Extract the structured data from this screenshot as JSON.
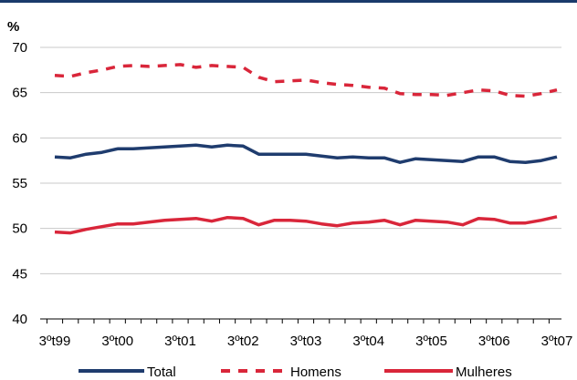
{
  "chart_data": {
    "type": "line",
    "unit_label": "%",
    "ylim": [
      40,
      70
    ],
    "yticks": [
      40,
      45,
      50,
      55,
      60,
      65,
      70
    ],
    "grid": true,
    "legend_position": "bottom",
    "x_tick_labels": [
      "3ºt99",
      "3ºt00",
      "3ºt01",
      "3ºt02",
      "3ºt03",
      "3ºt04",
      "3ºt05",
      "3ºt06",
      "3ºt07"
    ],
    "x_tick_indices": [
      0,
      4,
      8,
      12,
      16,
      20,
      24,
      28,
      32
    ],
    "n_points": 33,
    "series": [
      {
        "name": "Total",
        "color": "#1f3c6e",
        "dash": false,
        "values": [
          57.9,
          57.8,
          58.2,
          58.4,
          58.8,
          58.8,
          58.9,
          59.0,
          59.1,
          59.2,
          59.0,
          59.2,
          59.1,
          58.2,
          58.2,
          58.2,
          58.2,
          58.0,
          57.8,
          57.9,
          57.8,
          57.8,
          57.3,
          57.7,
          57.6,
          57.5,
          57.4,
          57.9,
          57.9,
          57.4,
          57.3,
          57.5,
          57.9
        ]
      },
      {
        "name": "Homens",
        "color": "#d9263a",
        "dash": true,
        "values": [
          66.9,
          66.8,
          67.2,
          67.5,
          67.9,
          68.0,
          67.9,
          68.0,
          68.1,
          67.8,
          68.0,
          67.9,
          67.8,
          66.7,
          66.2,
          66.3,
          66.4,
          66.1,
          65.9,
          65.8,
          65.6,
          65.5,
          64.9,
          64.8,
          64.8,
          64.7,
          65.0,
          65.3,
          65.2,
          64.7,
          64.6,
          64.9,
          65.3
        ]
      },
      {
        "name": "Mulheres",
        "color": "#d9263a",
        "dash": false,
        "values": [
          49.6,
          49.5,
          49.9,
          50.2,
          50.5,
          50.5,
          50.7,
          50.9,
          51.0,
          51.1,
          50.8,
          51.2,
          51.1,
          50.4,
          50.9,
          50.9,
          50.8,
          50.5,
          50.3,
          50.6,
          50.7,
          50.9,
          50.4,
          50.9,
          50.8,
          50.7,
          50.4,
          51.1,
          51.0,
          50.6,
          50.6,
          50.9,
          51.3
        ]
      }
    ]
  }
}
